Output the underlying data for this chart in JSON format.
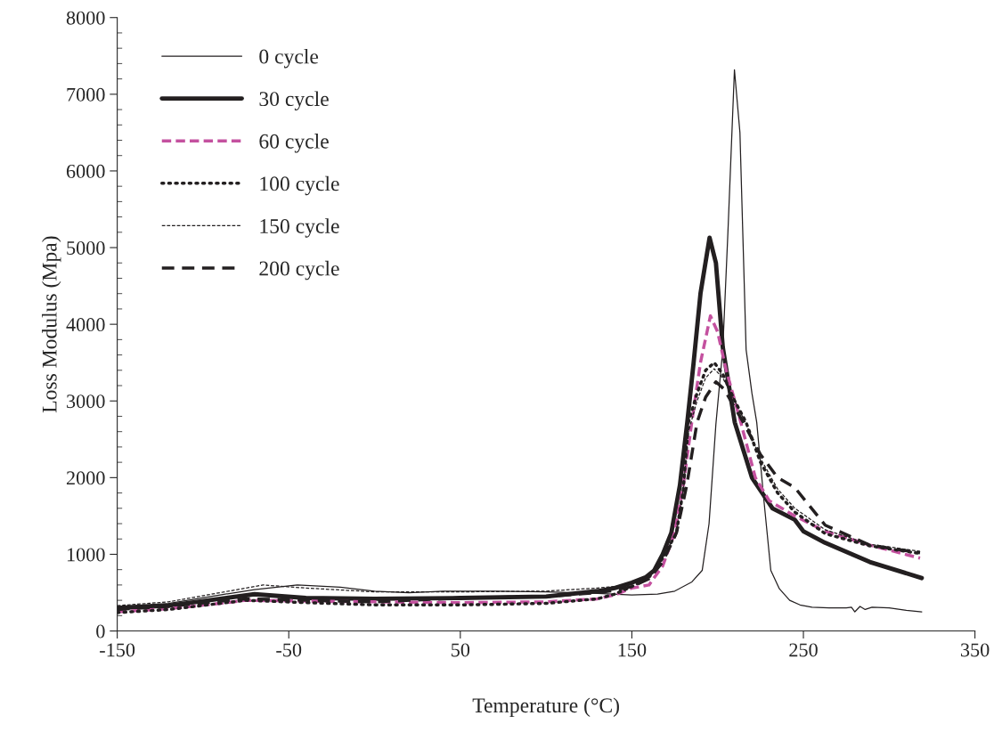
{
  "chart_data": {
    "type": "line",
    "xlabel": "Temperature (°C)",
    "ylabel": "Loss Modulus (Mpa)",
    "xlim": [
      -150,
      350
    ],
    "xticks": [
      -150,
      -50,
      50,
      150,
      250,
      350
    ],
    "ylim": [
      0,
      8000
    ],
    "yticks": [
      0,
      1000,
      2000,
      3000,
      4000,
      5000,
      6000,
      7000,
      8000
    ],
    "grid": false,
    "legend": "top left",
    "marker": "none",
    "series": [
      {
        "name": "0 cycle",
        "color": "#231f20",
        "line_style": "solid",
        "x": [
          -150,
          -120,
          -90,
          -70,
          -45,
          -20,
          0,
          20,
          40,
          70,
          100,
          130,
          150,
          165,
          175,
          185,
          191,
          195,
          199,
          203,
          206,
          209.8,
          213,
          216.6,
          220,
          222.8,
          227,
          231,
          236,
          242,
          248,
          255,
          265,
          275,
          278,
          280,
          283,
          286,
          290,
          300,
          310,
          319
        ],
        "values": [
          320,
          360,
          470,
          540,
          600,
          570,
          520,
          500,
          520,
          520,
          510,
          490,
          470,
          480,
          520,
          640,
          790,
          1400,
          2700,
          3670,
          5200,
          7320,
          6500,
          3670,
          3100,
          2720,
          1700,
          790,
          550,
          400,
          340,
          310,
          300,
          300,
          310,
          250,
          320,
          280,
          310,
          300,
          270,
          250
        ]
      },
      {
        "name": "30 cycle",
        "color": "#231f20",
        "line_style": "solid",
        "x": [
          -150,
          -120,
          -90,
          -70,
          -40,
          0,
          50,
          100,
          130,
          140,
          150,
          158,
          163,
          168,
          173,
          178,
          182.3,
          186,
          190,
          195.3,
          199,
          203,
          210,
          220,
          232,
          245,
          250,
          262.7,
          288.7,
          319
        ],
        "values": [
          300,
          330,
          420,
          480,
          430,
          420,
          430,
          450,
          520,
          560,
          630,
          700,
          790,
          1000,
          1280,
          1900,
          2720,
          3500,
          4400,
          5130,
          4800,
          3700,
          2720,
          2000,
          1600,
          1450,
          1300,
          1150,
          900,
          690
        ]
      },
      {
        "name": "60 cycle",
        "color": "#c4519f",
        "line_style": "dashed",
        "x": [
          -150,
          -120,
          -90,
          -75,
          -40,
          0,
          50,
          100,
          130,
          140,
          150,
          160,
          168,
          175,
          180,
          184.9,
          190,
          195.8,
          200,
          205,
          213.5,
          222,
          230,
          245,
          262.7,
          288.7,
          318
        ],
        "values": [
          250,
          290,
          360,
          400,
          390,
          380,
          370,
          380,
          420,
          470,
          560,
          600,
          850,
          1280,
          1900,
          2720,
          3500,
          4110,
          3900,
          3400,
          2720,
          2000,
          1700,
          1500,
          1300,
          1120,
          950
        ]
      },
      {
        "name": "100 cycle",
        "color": "#231f20",
        "line_style": "dotted",
        "x": [
          -150,
          -120,
          -90,
          -75,
          -40,
          0,
          50,
          100,
          130,
          140,
          150,
          160,
          168,
          176,
          180,
          183,
          188,
          193,
          198,
          203,
          210,
          216.6,
          225,
          235,
          245,
          262.7,
          288.7,
          318
        ],
        "values": [
          240,
          280,
          360,
          400,
          370,
          340,
          340,
          360,
          420,
          480,
          580,
          700,
          950,
          1280,
          1850,
          2720,
          3100,
          3400,
          3500,
          3350,
          3000,
          2720,
          2200,
          1800,
          1550,
          1270,
          1110,
          1010
        ]
      },
      {
        "name": "150 cycle",
        "color": "#231f20",
        "line_style": "dashed",
        "x": [
          -150,
          -120,
          -90,
          -65,
          -40,
          0,
          50,
          100,
          130,
          140,
          150,
          160,
          168,
          176,
          180,
          183,
          188,
          193,
          198,
          203,
          210,
          216.6,
          225,
          235,
          245,
          262.7,
          288.7,
          318
        ],
        "values": [
          330,
          380,
          500,
          600,
          560,
          510,
          510,
          520,
          560,
          580,
          620,
          720,
          950,
          1280,
          1850,
          2600,
          3000,
          3300,
          3420,
          3300,
          3000,
          2700,
          2250,
          1850,
          1600,
          1320,
          1130,
          1040
        ]
      },
      {
        "name": "200 cycle",
        "color": "#231f20",
        "line_style": "dashed",
        "x": [
          -150,
          -120,
          -90,
          -75,
          -40,
          0,
          50,
          100,
          130,
          140,
          150,
          160,
          168,
          176,
          182,
          188,
          193,
          199,
          204,
          209,
          215,
          225,
          235,
          245,
          262.7,
          288.7,
          318
        ],
        "values": [
          280,
          320,
          390,
          420,
          400,
          380,
          430,
          450,
          500,
          530,
          580,
          680,
          900,
          1280,
          1900,
          2720,
          3050,
          3250,
          3150,
          2950,
          2720,
          2300,
          2000,
          1870,
          1380,
          1120,
          1020
        ]
      }
    ]
  }
}
